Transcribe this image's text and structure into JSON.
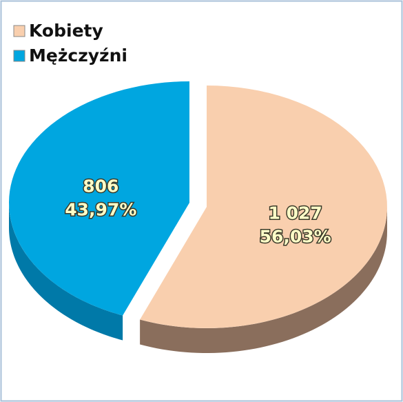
{
  "chart_data": {
    "type": "pie",
    "categories": [
      "Kobiety",
      "Mężczyźni"
    ],
    "values": [
      1027,
      806
    ],
    "value_labels": [
      "1 027",
      "806"
    ],
    "percentages": [
      56.03,
      43.97
    ],
    "percentage_labels": [
      "56,03%",
      "43,97%"
    ],
    "colors": [
      "#f9cfae",
      "#00a6e0"
    ],
    "side_colors": [
      "#8a6e5c",
      "#0079a8"
    ],
    "legend": "top-left"
  }
}
